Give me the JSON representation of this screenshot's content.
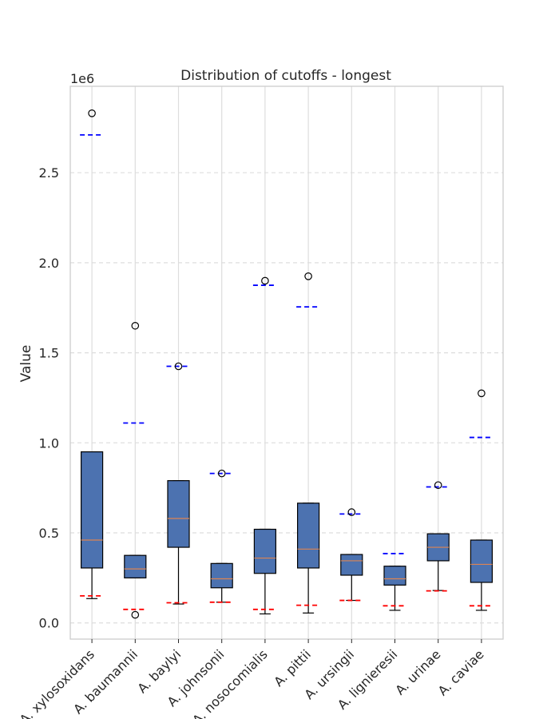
{
  "chart_data": {
    "type": "box",
    "title": "Distribution of cutoffs - longest",
    "xlabel": "",
    "ylabel": "Value",
    "y_offset_label": "1e6",
    "ylim": [
      -90000,
      2980000
    ],
    "yticks": [
      0,
      500000,
      1000000,
      1500000,
      2000000,
      2500000
    ],
    "ytick_labels": [
      "0.0",
      "0.5",
      "1.0",
      "1.5",
      "2.0",
      "2.5"
    ],
    "grid": {
      "x": "solid",
      "y": "dashed"
    },
    "colors": {
      "box_fill": "#4c72b0",
      "median": "#dd8452",
      "upper_cutoff": "#0000ff",
      "lower_cutoff": "#ff0000",
      "grid": "#dddddd",
      "spine": "#cccccc"
    },
    "categories": [
      "A. xylosoxidans",
      "A. baumannii",
      "A. baylyi",
      "A. johnsonii",
      "A. nosocomialis",
      "A. pittii",
      "A. ursingii",
      "A. lignieresii",
      "A. urinae",
      "A. caviae"
    ],
    "boxes": [
      {
        "q1": 305000,
        "median": 460000,
        "q3": 950000,
        "whisker_low": 135000,
        "whisker_high": 950000,
        "fliers": [
          2830000
        ],
        "upper_cutoff": 2710000,
        "lower_cutoff": 150000
      },
      {
        "q1": 250000,
        "median": 300000,
        "q3": 375000,
        "whisker_low": 250000,
        "whisker_high": 375000,
        "fliers": [
          1650000,
          45000
        ],
        "upper_cutoff": 1110000,
        "lower_cutoff": 75000
      },
      {
        "q1": 420000,
        "median": 580000,
        "q3": 790000,
        "whisker_low": 105000,
        "whisker_high": 790000,
        "fliers": [
          1425000
        ],
        "upper_cutoff": 1425000,
        "lower_cutoff": 112000
      },
      {
        "q1": 195000,
        "median": 245000,
        "q3": 330000,
        "whisker_low": 115000,
        "whisker_high": 330000,
        "fliers": [
          830000
        ],
        "upper_cutoff": 830000,
        "lower_cutoff": 115000
      },
      {
        "q1": 275000,
        "median": 360000,
        "q3": 520000,
        "whisker_low": 50000,
        "whisker_high": 520000,
        "fliers": [
          1900000
        ],
        "upper_cutoff": 1875000,
        "lower_cutoff": 75000
      },
      {
        "q1": 305000,
        "median": 410000,
        "q3": 665000,
        "whisker_low": 55000,
        "whisker_high": 665000,
        "fliers": [
          1925000
        ],
        "upper_cutoff": 1755000,
        "lower_cutoff": 98000
      },
      {
        "q1": 265000,
        "median": 345000,
        "q3": 380000,
        "whisker_low": 125000,
        "whisker_high": 380000,
        "fliers": [
          615000
        ],
        "upper_cutoff": 605000,
        "lower_cutoff": 125000
      },
      {
        "q1": 210000,
        "median": 245000,
        "q3": 315000,
        "whisker_low": 70000,
        "whisker_high": 315000,
        "fliers": [],
        "upper_cutoff": 385000,
        "lower_cutoff": 95000
      },
      {
        "q1": 345000,
        "median": 420000,
        "q3": 495000,
        "whisker_low": 180000,
        "whisker_high": 495000,
        "fliers": [
          765000
        ],
        "upper_cutoff": 755000,
        "lower_cutoff": 178000
      },
      {
        "q1": 225000,
        "median": 325000,
        "q3": 460000,
        "whisker_low": 70000,
        "whisker_high": 460000,
        "fliers": [
          1275000
        ],
        "upper_cutoff": 1030000,
        "lower_cutoff": 95000
      }
    ]
  }
}
